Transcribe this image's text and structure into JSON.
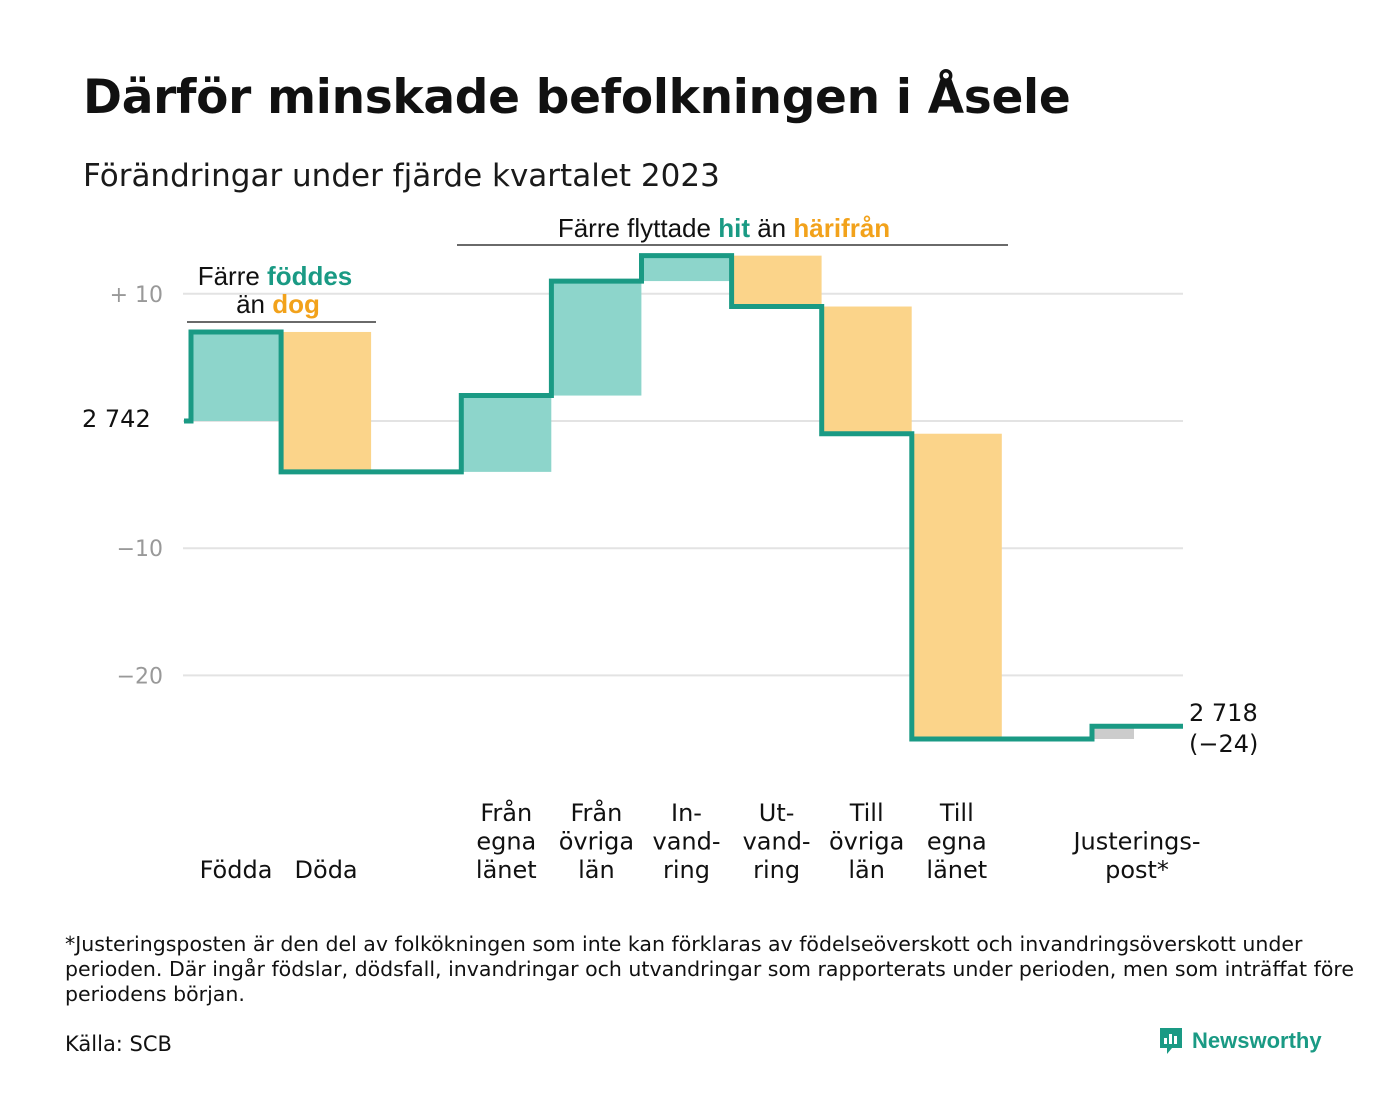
{
  "title": "Därför minskade befolkningen i Åsele",
  "subtitle": "Förändringar under fjärde kvartalet 2023",
  "annotations": {
    "births": {
      "pre": "Färre ",
      "highlight_in": "föddes",
      "mid": "än ",
      "highlight_out": "dog"
    },
    "migration": {
      "pre": "Färre flyttade ",
      "highlight_in": "hit",
      "mid": " än ",
      "highlight_out": "härifrån"
    }
  },
  "start_label": "2 742",
  "end_label": {
    "total": "2 718",
    "change": "(−24)"
  },
  "footnote": "*Justeringsposten är den del av folkökningen som inte kan förklaras av födelseöverskott och invandringsöverskott under perioden. Där ingår födslar, dödsfall, invandringar och utvandringar som rapporterats under perioden, men som inträffat före periodens början.",
  "source": "Källa: SCB",
  "brand": "Newsworthy",
  "colors": {
    "line": "#1a9a84",
    "increase": "#8dd5cb",
    "decrease": "#fbd48a",
    "adjustment": "#cccccc",
    "highlight_in": "#1a9a84",
    "highlight_out": "#f2a21b",
    "grid": "#e3e3e3",
    "tick": "#999999"
  },
  "chart_data": {
    "type": "waterfall",
    "start_value": 2742,
    "end_value": 2718,
    "total_change": -24,
    "ylim": [
      -25,
      13
    ],
    "yticks": [
      {
        "value": 10,
        "label": "+  10"
      },
      {
        "value": -10,
        "label": "−10"
      },
      {
        "value": -20,
        "label": "−20"
      }
    ],
    "steps": [
      {
        "label": [
          "Födda"
        ],
        "value": 7,
        "kind": "in"
      },
      {
        "label": [
          "Döda"
        ],
        "value": -11,
        "kind": "out"
      },
      {
        "label": [],
        "value": 0,
        "kind": "gap"
      },
      {
        "label": [
          "Från",
          "egna",
          "länet"
        ],
        "value": 6,
        "kind": "in"
      },
      {
        "label": [
          "Från",
          "övriga",
          "län"
        ],
        "value": 9,
        "kind": "in"
      },
      {
        "label": [
          "In-",
          "vand-",
          "ring"
        ],
        "value": 2,
        "kind": "in"
      },
      {
        "label": [
          "Ut-",
          "vand-",
          "ring"
        ],
        "value": -4,
        "kind": "out"
      },
      {
        "label": [
          "Till",
          "övriga",
          "län"
        ],
        "value": -10,
        "kind": "out"
      },
      {
        "label": [
          "Till",
          "egna",
          "länet"
        ],
        "value": -24,
        "kind": "out"
      },
      {
        "label": [],
        "value": 0,
        "kind": "gap"
      },
      {
        "label": [
          "Justerings-",
          "post*"
        ],
        "value": 1,
        "kind": "adj"
      }
    ]
  }
}
